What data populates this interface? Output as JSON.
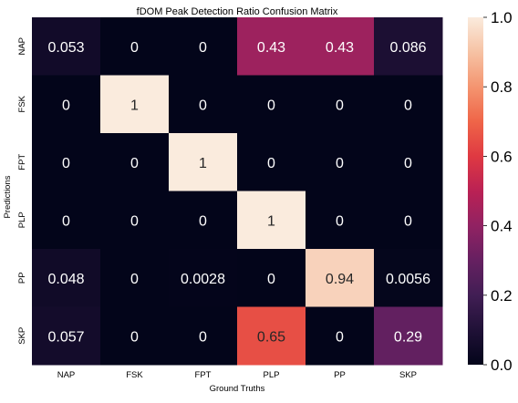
{
  "chart_data": {
    "type": "heatmap",
    "title": "fDOM Peak Detection Ratio Confusion Matrix",
    "xlabel": "Ground Truths",
    "ylabel": "Predictions",
    "x_categories": [
      "NAP",
      "FSK",
      "FPT",
      "PLP",
      "PP",
      "SKP"
    ],
    "y_categories": [
      "NAP",
      "FSK",
      "FPT",
      "PLP",
      "PP",
      "SKP"
    ],
    "values": [
      [
        0.053,
        0,
        0,
        0.43,
        0.43,
        0.086
      ],
      [
        0,
        1,
        0,
        0,
        0,
        0
      ],
      [
        0,
        0,
        1,
        0,
        0,
        0
      ],
      [
        0,
        0,
        0,
        1,
        0,
        0
      ],
      [
        0.048,
        0,
        0.0028,
        0,
        0.94,
        0.0056
      ],
      [
        0.057,
        0,
        0,
        0.65,
        0,
        0.29
      ]
    ],
    "cell_labels": [
      [
        "0.053",
        "0",
        "0",
        "0.43",
        "0.43",
        "0.086"
      ],
      [
        "0",
        "1",
        "0",
        "0",
        "0",
        "0"
      ],
      [
        "0",
        "0",
        "1",
        "0",
        "0",
        "0"
      ],
      [
        "0",
        "0",
        "0",
        "1",
        "0",
        "0"
      ],
      [
        "0.048",
        "0",
        "0.0028",
        "0",
        "0.94",
        "0.0056"
      ],
      [
        "0.057",
        "0",
        "0",
        "0.65",
        "0",
        "0.29"
      ]
    ],
    "colorbar": {
      "range": [
        0,
        1
      ],
      "ticks": [
        0.0,
        0.2,
        0.4,
        0.6,
        0.8,
        1.0
      ],
      "tick_labels": [
        "0.0",
        "0.2",
        "0.4",
        "0.6",
        "0.8",
        "1.0"
      ],
      "colormap": "rocket"
    },
    "grid": false
  }
}
